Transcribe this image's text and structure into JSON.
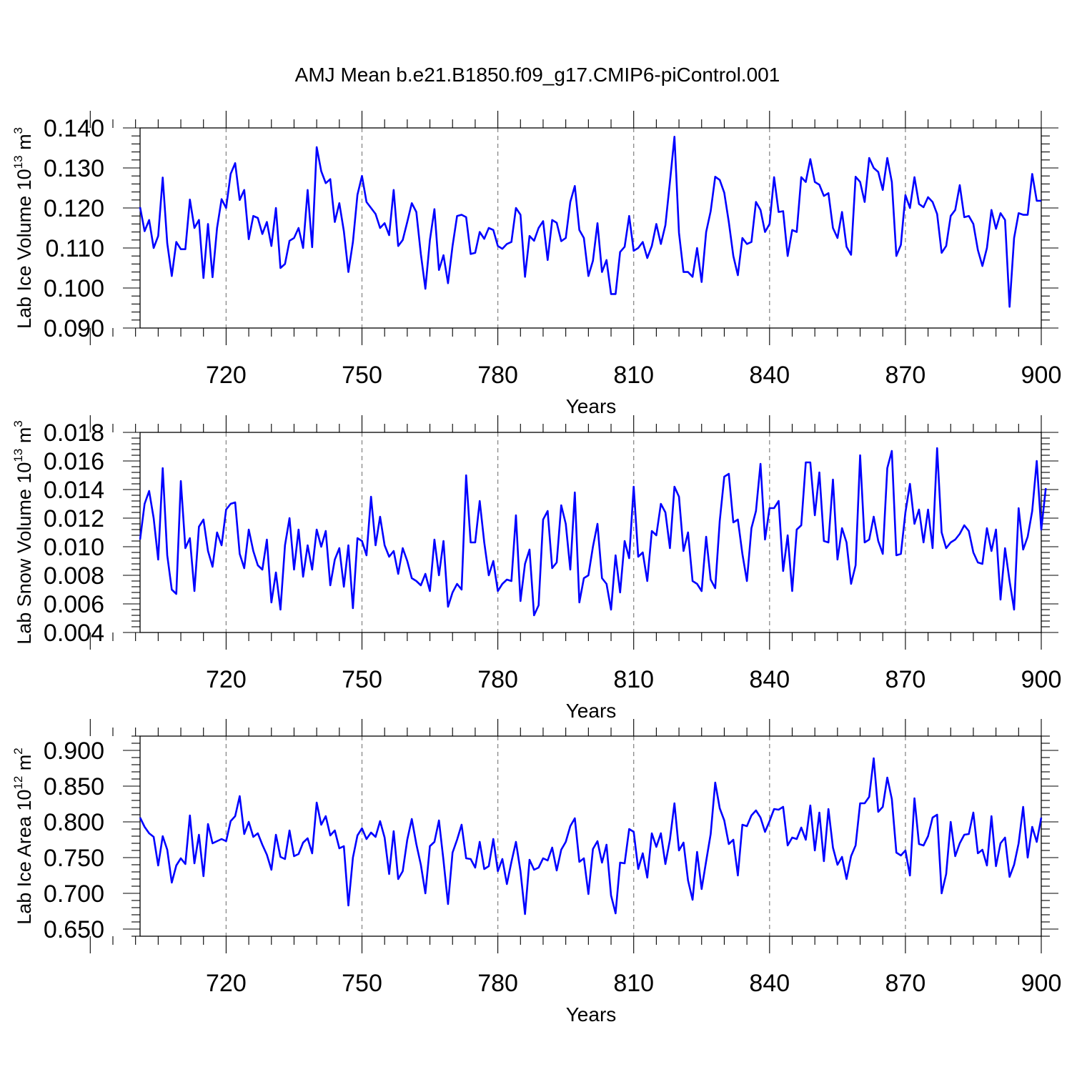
{
  "title": "AMJ Mean b.e21.B1850.f09_g17.CMIP6-piControl.001",
  "colors": {
    "series": "#0000ff",
    "axis": "#000000",
    "grid": "#888888"
  },
  "chart_data": [
    {
      "type": "line",
      "title": "AMJ Mean b.e21.B1850.f09_g17.CMIP6-piControl.001",
      "xlabel": "Years",
      "ylabel_main": "Lab Ice Volume 10",
      "ylabel_exp": "13",
      "ylabel_unit": " m",
      "ylabel_unit_exp": "3",
      "xlim": [
        701,
        900
      ],
      "ylim": [
        0.09,
        0.14
      ],
      "xticks": [
        720,
        750,
        780,
        810,
        840,
        870,
        900
      ],
      "xtick_labels": [
        "720",
        "750",
        "780",
        "810",
        "840",
        "870",
        "900"
      ],
      "yticks": [
        0.09,
        0.1,
        0.11,
        0.12,
        0.13,
        0.14
      ],
      "ytick_labels": [
        "0.090",
        "0.100",
        "0.110",
        "0.120",
        "0.130",
        "0.140"
      ],
      "x_start": 701,
      "series": [
        {
          "name": "Lab Ice Volume",
          "values": [
            0.1202,
            0.1142,
            0.117,
            0.11,
            0.113,
            0.1276,
            0.1112,
            0.103,
            0.1115,
            0.1097,
            0.1097,
            0.1221,
            0.115,
            0.117,
            0.1025,
            0.116,
            0.1027,
            0.115,
            0.1222,
            0.12,
            0.1285,
            0.1312,
            0.122,
            0.1245,
            0.1122,
            0.118,
            0.1175,
            0.1135,
            0.1165,
            0.1105,
            0.12,
            0.105,
            0.106,
            0.1118,
            0.1125,
            0.115,
            0.11,
            0.1245,
            0.1102,
            0.1352,
            0.1292,
            0.1262,
            0.1272,
            0.1165,
            0.1212,
            0.1142,
            0.104,
            0.1115,
            0.1233,
            0.128,
            0.1215,
            0.12,
            0.1185,
            0.115,
            0.1162,
            0.1132,
            0.1245,
            0.1105,
            0.112,
            0.1165,
            0.1212,
            0.119,
            0.1085,
            0.0998,
            0.112,
            0.1197,
            0.1045,
            0.1082,
            0.1012,
            0.1105,
            0.118,
            0.1183,
            0.1177,
            0.1085,
            0.1088,
            0.114,
            0.1123,
            0.115,
            0.1145,
            0.1105,
            0.1098,
            0.111,
            0.1115,
            0.12,
            0.1183,
            0.1028,
            0.113,
            0.1118,
            0.115,
            0.1167,
            0.107,
            0.117,
            0.1163,
            0.1117,
            0.1125,
            0.1215,
            0.1255,
            0.1145,
            0.1125,
            0.103,
            0.1068,
            0.1162,
            0.104,
            0.107,
            0.0985,
            0.0985,
            0.109,
            0.1103,
            0.118,
            0.1093,
            0.11,
            0.1115,
            0.1075,
            0.1105,
            0.116,
            0.111,
            0.1157,
            0.1265,
            0.1378,
            0.1138,
            0.104,
            0.104,
            0.1028,
            0.11,
            0.1015,
            0.114,
            0.1192,
            0.1278,
            0.127,
            0.1238,
            0.1165,
            0.108,
            0.1032,
            0.1125,
            0.111,
            0.1115,
            0.1215,
            0.1195,
            0.114,
            0.116,
            0.1277,
            0.119,
            0.1192,
            0.108,
            0.1145,
            0.114,
            0.1277,
            0.1265,
            0.1322,
            0.1265,
            0.1258,
            0.123,
            0.1237,
            0.115,
            0.1125,
            0.119,
            0.1103,
            0.1083,
            0.1278,
            0.1265,
            0.1215,
            0.1325,
            0.13,
            0.129,
            0.1245,
            0.1325,
            0.1265,
            0.108,
            0.1108,
            0.1232,
            0.12,
            0.1277,
            0.121,
            0.1202,
            0.1227,
            0.1215,
            0.1185,
            0.1088,
            0.1105,
            0.118,
            0.1195,
            0.1257,
            0.1177,
            0.118,
            0.116,
            0.1095,
            0.1055,
            0.11,
            0.1195,
            0.1148,
            0.1187,
            0.117,
            0.0953,
            0.1125,
            0.1187,
            0.1183,
            0.1183,
            0.1285,
            0.1218,
            0.1218
          ]
        }
      ]
    },
    {
      "type": "line",
      "xlabel": "Years",
      "ylabel_main": "Lab Snow Volume 10",
      "ylabel_exp": "13",
      "ylabel_unit": " m",
      "ylabel_unit_exp": "3",
      "xlim": [
        701,
        900
      ],
      "ylim": [
        0.004,
        0.018
      ],
      "xticks": [
        720,
        750,
        780,
        810,
        840,
        870,
        900
      ],
      "xtick_labels": [
        "720",
        "750",
        "780",
        "810",
        "840",
        "870",
        "900"
      ],
      "yticks": [
        0.004,
        0.006,
        0.008,
        0.01,
        0.012,
        0.014,
        0.016,
        0.018
      ],
      "ytick_labels": [
        "0.004",
        "0.006",
        "0.008",
        "0.010",
        "0.012",
        "0.014",
        "0.016",
        "0.018"
      ],
      "x_start": 701,
      "series": [
        {
          "name": "Lab Snow Volume",
          "values": [
            0.0105,
            0.013,
            0.0139,
            0.012,
            0.0091,
            0.0155,
            0.0094,
            0.007,
            0.0067,
            0.0146,
            0.0099,
            0.0106,
            0.0069,
            0.0114,
            0.0119,
            0.0097,
            0.0086,
            0.011,
            0.0101,
            0.0126,
            0.013,
            0.0131,
            0.0095,
            0.0085,
            0.0112,
            0.0097,
            0.0087,
            0.0084,
            0.0105,
            0.0061,
            0.0082,
            0.0056,
            0.0101,
            0.012,
            0.0084,
            0.0112,
            0.0079,
            0.0101,
            0.0084,
            0.0112,
            0.01,
            0.0111,
            0.0073,
            0.0091,
            0.0099,
            0.0072,
            0.0101,
            0.0057,
            0.0106,
            0.0104,
            0.0094,
            0.0135,
            0.0101,
            0.0121,
            0.0101,
            0.0093,
            0.0097,
            0.0081,
            0.0099,
            0.009,
            0.0078,
            0.0076,
            0.0073,
            0.0081,
            0.0069,
            0.0105,
            0.008,
            0.0104,
            0.0058,
            0.0068,
            0.0074,
            0.007,
            0.015,
            0.0103,
            0.0103,
            0.0132,
            0.0103,
            0.008,
            0.009,
            0.0069,
            0.0074,
            0.0077,
            0.0076,
            0.0122,
            0.0062,
            0.0088,
            0.0098,
            0.0052,
            0.0059,
            0.0119,
            0.0125,
            0.0085,
            0.0089,
            0.0129,
            0.0116,
            0.0084,
            0.0138,
            0.0061,
            0.0078,
            0.008,
            0.01,
            0.0116,
            0.0078,
            0.0074,
            0.0056,
            0.0094,
            0.0068,
            0.0104,
            0.0092,
            0.0142,
            0.0093,
            0.0096,
            0.0076,
            0.0111,
            0.0108,
            0.013,
            0.0124,
            0.0099,
            0.0142,
            0.0135,
            0.0097,
            0.011,
            0.0076,
            0.0074,
            0.0069,
            0.0107,
            0.0077,
            0.0071,
            0.0118,
            0.0149,
            0.0151,
            0.0117,
            0.0119,
            0.0095,
            0.0076,
            0.0113,
            0.0125,
            0.0158,
            0.0105,
            0.0127,
            0.0127,
            0.0132,
            0.0083,
            0.0108,
            0.0069,
            0.0112,
            0.0115,
            0.0159,
            0.0159,
            0.0122,
            0.0152,
            0.0104,
            0.0103,
            0.0147,
            0.0091,
            0.0113,
            0.0103,
            0.0074,
            0.0087,
            0.0164,
            0.0103,
            0.0105,
            0.0121,
            0.0104,
            0.0095,
            0.0155,
            0.0167,
            0.0094,
            0.0095,
            0.0124,
            0.0144,
            0.0116,
            0.0126,
            0.0103,
            0.0126,
            0.0099,
            0.0169,
            0.011,
            0.0099,
            0.0103,
            0.0105,
            0.0109,
            0.0115,
            0.0111,
            0.0096,
            0.0089,
            0.0088,
            0.0113,
            0.0097,
            0.0112,
            0.0063,
            0.0099,
            0.0076,
            0.0056,
            0.0127,
            0.0098,
            0.0107,
            0.0125,
            0.016,
            0.0112,
            0.0141
          ]
        }
      ]
    },
    {
      "type": "line",
      "xlabel": "Years",
      "ylabel_main": "Lab Ice Area 10",
      "ylabel_exp": "12",
      "ylabel_unit": " m",
      "ylabel_unit_exp": "2",
      "xlim": [
        701,
        900
      ],
      "ylim": [
        0.64,
        0.92
      ],
      "xticks": [
        720,
        750,
        780,
        810,
        840,
        870,
        900
      ],
      "xtick_labels": [
        "720",
        "750",
        "780",
        "810",
        "840",
        "870",
        "900"
      ],
      "yticks": [
        0.65,
        0.7,
        0.75,
        0.8,
        0.85,
        0.9
      ],
      "ytick_labels": [
        "0.650",
        "0.700",
        "0.750",
        "0.800",
        "0.850",
        "0.900"
      ],
      "x_start": 701,
      "series": [
        {
          "name": "Lab Ice Area",
          "values": [
            0.806,
            0.793,
            0.784,
            0.779,
            0.739,
            0.78,
            0.761,
            0.715,
            0.739,
            0.749,
            0.741,
            0.809,
            0.742,
            0.782,
            0.724,
            0.797,
            0.77,
            0.773,
            0.776,
            0.773,
            0.801,
            0.808,
            0.836,
            0.783,
            0.8,
            0.779,
            0.784,
            0.768,
            0.754,
            0.733,
            0.782,
            0.751,
            0.748,
            0.788,
            0.752,
            0.755,
            0.771,
            0.777,
            0.756,
            0.827,
            0.796,
            0.808,
            0.781,
            0.788,
            0.763,
            0.766,
            0.683,
            0.75,
            0.781,
            0.791,
            0.776,
            0.785,
            0.779,
            0.801,
            0.778,
            0.727,
            0.787,
            0.72,
            0.731,
            0.775,
            0.804,
            0.769,
            0.74,
            0.7,
            0.766,
            0.772,
            0.802,
            0.746,
            0.685,
            0.757,
            0.775,
            0.796,
            0.749,
            0.748,
            0.736,
            0.772,
            0.734,
            0.738,
            0.776,
            0.731,
            0.748,
            0.713,
            0.744,
            0.772,
            0.731,
            0.671,
            0.747,
            0.733,
            0.736,
            0.749,
            0.746,
            0.764,
            0.732,
            0.761,
            0.772,
            0.794,
            0.805,
            0.744,
            0.749,
            0.699,
            0.762,
            0.773,
            0.743,
            0.768,
            0.697,
            0.672,
            0.743,
            0.742,
            0.79,
            0.786,
            0.734,
            0.756,
            0.722,
            0.784,
            0.765,
            0.784,
            0.741,
            0.775,
            0.826,
            0.76,
            0.771,
            0.718,
            0.691,
            0.758,
            0.706,
            0.745,
            0.783,
            0.855,
            0.819,
            0.802,
            0.769,
            0.775,
            0.725,
            0.796,
            0.794,
            0.809,
            0.816,
            0.806,
            0.786,
            0.801,
            0.818,
            0.817,
            0.821,
            0.767,
            0.778,
            0.776,
            0.792,
            0.775,
            0.823,
            0.76,
            0.813,
            0.745,
            0.818,
            0.764,
            0.74,
            0.751,
            0.72,
            0.752,
            0.767,
            0.826,
            0.826,
            0.835,
            0.889,
            0.814,
            0.821,
            0.862,
            0.832,
            0.757,
            0.753,
            0.76,
            0.725,
            0.833,
            0.769,
            0.767,
            0.78,
            0.806,
            0.81,
            0.7,
            0.727,
            0.8,
            0.752,
            0.77,
            0.782,
            0.783,
            0.813,
            0.756,
            0.761,
            0.739,
            0.808,
            0.738,
            0.77,
            0.778,
            0.723,
            0.74,
            0.77,
            0.821,
            0.75,
            0.793,
            0.772,
            0.806
          ]
        }
      ]
    }
  ]
}
